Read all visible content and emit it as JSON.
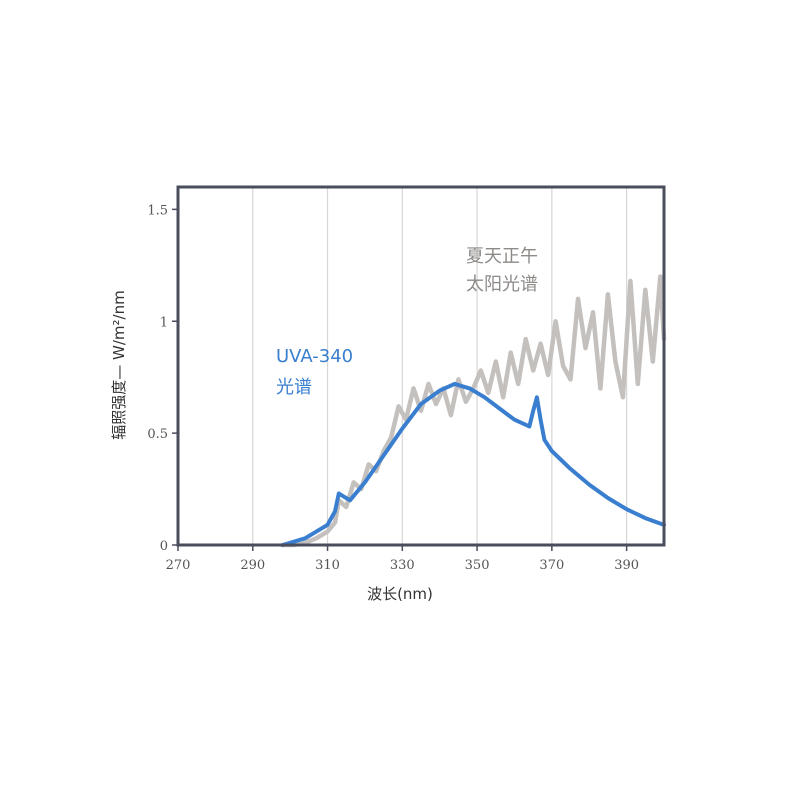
{
  "chart_data": {
    "type": "line",
    "xlabel": "波长(nm)",
    "ylabel": "辐照强度— W/m²/nm",
    "xlim": [
      270,
      400
    ],
    "ylim": [
      0,
      1.6
    ],
    "x_ticks": [
      270,
      290,
      310,
      330,
      350,
      370,
      390
    ],
    "x_tick_labels": [
      "270",
      "290",
      "310",
      "330",
      "350",
      "370",
      "390"
    ],
    "y_ticks": [
      0,
      0.5,
      1,
      1.5
    ],
    "y_tick_labels": [
      "0",
      "0.5",
      "1",
      "1.5"
    ],
    "grid": "vertical",
    "colors": {
      "uva": "#3a7fcf",
      "sun": "#c4c0bd",
      "frame": "#4a4d5c",
      "grid": "#d6d6d6"
    },
    "annotations": {
      "sun_line1": "夏天正午",
      "sun_line2": "太阳光谱",
      "uva_line1": "UVA-340",
      "uva_line2": "光谱"
    },
    "series": [
      {
        "key": "uva",
        "x": [
          298,
          300,
          302,
          304,
          306,
          308,
          310,
          312,
          313,
          314,
          316,
          320,
          325,
          330,
          335,
          340,
          344,
          348,
          352,
          356,
          360,
          364,
          365,
          366,
          367,
          368,
          370,
          375,
          380,
          385,
          390,
          395,
          400
        ],
        "y": [
          0.0,
          0.01,
          0.02,
          0.03,
          0.05,
          0.07,
          0.09,
          0.15,
          0.23,
          0.22,
          0.2,
          0.28,
          0.4,
          0.52,
          0.63,
          0.69,
          0.72,
          0.7,
          0.66,
          0.61,
          0.56,
          0.53,
          0.6,
          0.66,
          0.56,
          0.47,
          0.42,
          0.34,
          0.27,
          0.21,
          0.16,
          0.12,
          0.09
        ]
      },
      {
        "key": "sun",
        "x": [
          298,
          301,
          304,
          307,
          310,
          312,
          313,
          315,
          317,
          319,
          321,
          323,
          325,
          327,
          329,
          331,
          333,
          335,
          337,
          339,
          341,
          343,
          345,
          347,
          349,
          351,
          353,
          355,
          357,
          359,
          361,
          363,
          365,
          367,
          369,
          371,
          373,
          375,
          377,
          379,
          381,
          383,
          385,
          387,
          389,
          391,
          393,
          395,
          397,
          399,
          400
        ],
        "y": [
          0.0,
          0.0,
          0.01,
          0.03,
          0.06,
          0.1,
          0.2,
          0.17,
          0.28,
          0.25,
          0.36,
          0.33,
          0.42,
          0.48,
          0.62,
          0.56,
          0.7,
          0.6,
          0.72,
          0.63,
          0.7,
          0.58,
          0.74,
          0.64,
          0.7,
          0.78,
          0.68,
          0.82,
          0.66,
          0.86,
          0.72,
          0.92,
          0.78,
          0.9,
          0.76,
          1.0,
          0.8,
          0.74,
          1.1,
          0.88,
          1.04,
          0.7,
          1.12,
          0.82,
          0.66,
          1.18,
          0.72,
          1.14,
          0.82,
          1.2,
          0.92
        ]
      }
    ]
  }
}
